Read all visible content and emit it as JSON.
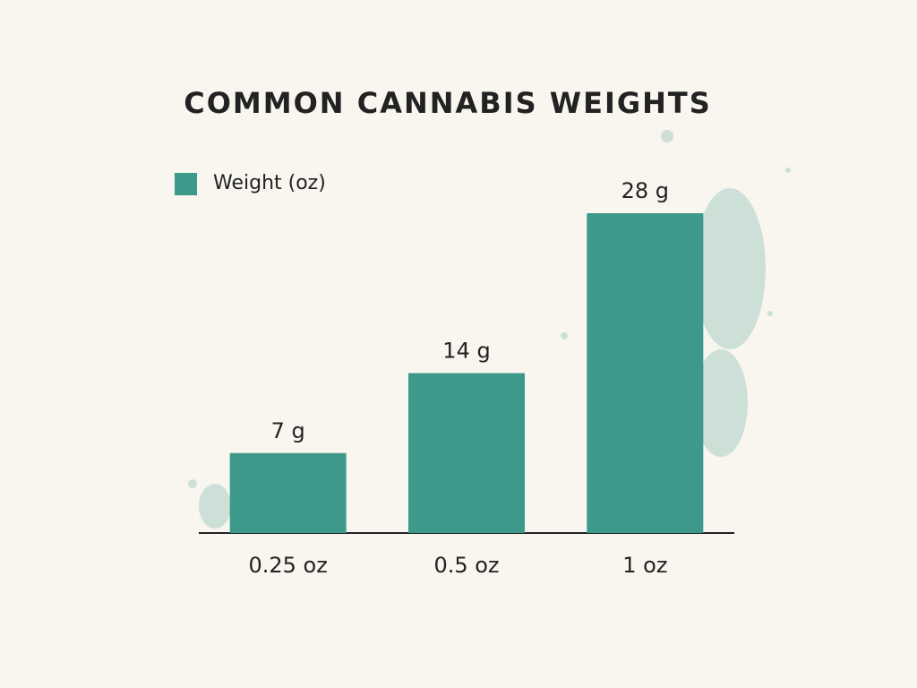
{
  "chart_data": {
    "type": "bar",
    "title": "COMMON CANNABIS WEIGHTS",
    "categories": [
      "0.25 oz",
      "0.5 oz",
      "1 oz"
    ],
    "series": [
      {
        "name": "Weight (oz)",
        "color": "#3d9a8b",
        "values": [
          7,
          14,
          28
        ],
        "value_labels": [
          "7 g",
          "14 g",
          "28 g"
        ]
      }
    ],
    "grid": false
  }
}
